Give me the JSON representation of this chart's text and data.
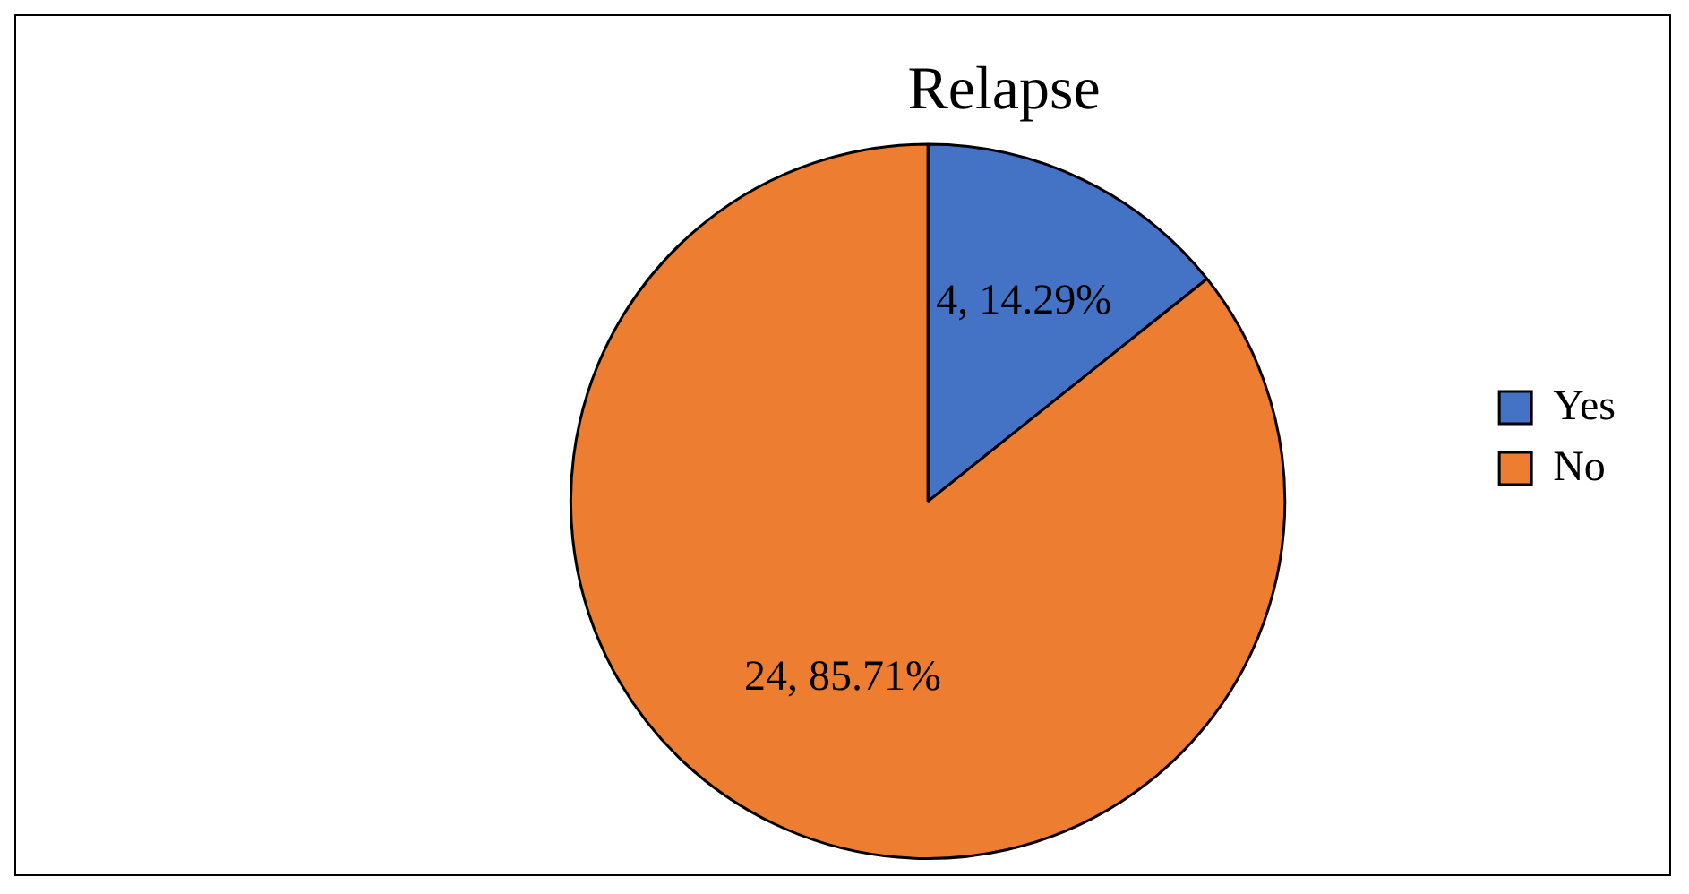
{
  "chart_data": {
    "type": "pie",
    "title": "Relapse",
    "categories": [
      "Yes",
      "No"
    ],
    "values": [
      4,
      24
    ],
    "colors": [
      "#4472c4",
      "#ed7d31"
    ],
    "value_labels": [
      "4, 14.29%",
      "24, 85.71%"
    ],
    "legend": "right"
  }
}
